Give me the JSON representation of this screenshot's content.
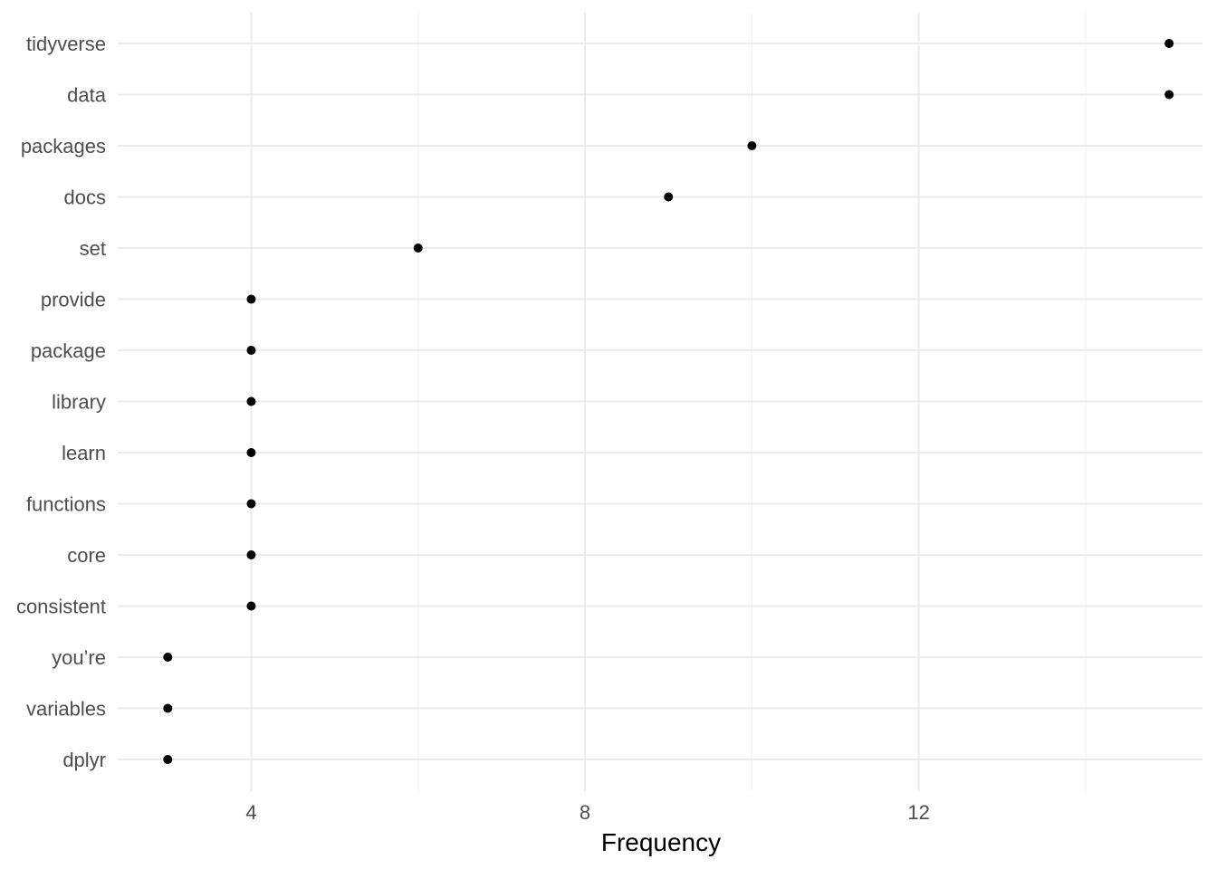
{
  "chart_data": {
    "type": "scatter",
    "title": "",
    "xlabel": "Frequency",
    "ylabel": "",
    "xlim": [
      2.4,
      15.4
    ],
    "x_ticks": [
      4,
      8,
      12
    ],
    "x_tick_labels": [
      "4",
      "8",
      "12"
    ],
    "x_minor_ticks": [
      6,
      10,
      14
    ],
    "grid": true,
    "legend": "none",
    "point_color": "#000000",
    "categories": [
      "tidyverse",
      "data",
      "packages",
      "docs",
      "set",
      "provide",
      "package",
      "library",
      "learn",
      "functions",
      "core",
      "consistent",
      "you’re",
      "variables",
      "dplyr"
    ],
    "values": [
      15,
      15,
      10,
      9,
      6,
      4,
      4,
      4,
      4,
      4,
      4,
      4,
      3,
      3,
      3
    ]
  }
}
